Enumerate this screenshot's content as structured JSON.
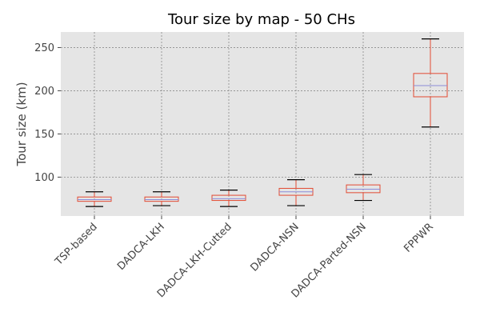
{
  "chart_data": {
    "type": "box",
    "title": "Tour size by map - 50 CHs",
    "xlabel": "",
    "ylabel": "Tour size (km)",
    "ylim": [
      55,
      268
    ],
    "yticks": [
      100,
      150,
      200,
      250
    ],
    "grid": true,
    "categories": [
      "TSP-based",
      "DADCA-LKH",
      "DADCA-LKH-Cutted",
      "DADCA-NSN",
      "DADCA-Parted-NSN",
      "FPPWR"
    ],
    "boxes": [
      {
        "category": "TSP-based",
        "whisker_low": 66,
        "q1": 72,
        "median": 74,
        "q3": 77,
        "whisker_high": 83
      },
      {
        "category": "DADCA-LKH",
        "whisker_low": 67,
        "q1": 72,
        "median": 74,
        "q3": 77,
        "whisker_high": 83
      },
      {
        "category": "DADCA-LKH-Cutted",
        "whisker_low": 66,
        "q1": 73,
        "median": 75,
        "q3": 79,
        "whisker_high": 85
      },
      {
        "category": "DADCA-NSN",
        "whisker_low": 67,
        "q1": 79,
        "median": 83,
        "q3": 87,
        "whisker_high": 97
      },
      {
        "category": "DADCA-Parted-NSN",
        "whisker_low": 73,
        "q1": 82,
        "median": 86,
        "q3": 91,
        "whisker_high": 103
      },
      {
        "category": "FPPWR",
        "whisker_low": 158,
        "q1": 193,
        "median": 206,
        "q3": 220,
        "whisker_high": 260
      }
    ],
    "colors": {
      "plot_background": "#e5e5e5",
      "grid": "#8a8a8a",
      "box": "#e24a33",
      "median": "#8b8bd8",
      "cap": "#000000",
      "text": "#444444"
    }
  }
}
